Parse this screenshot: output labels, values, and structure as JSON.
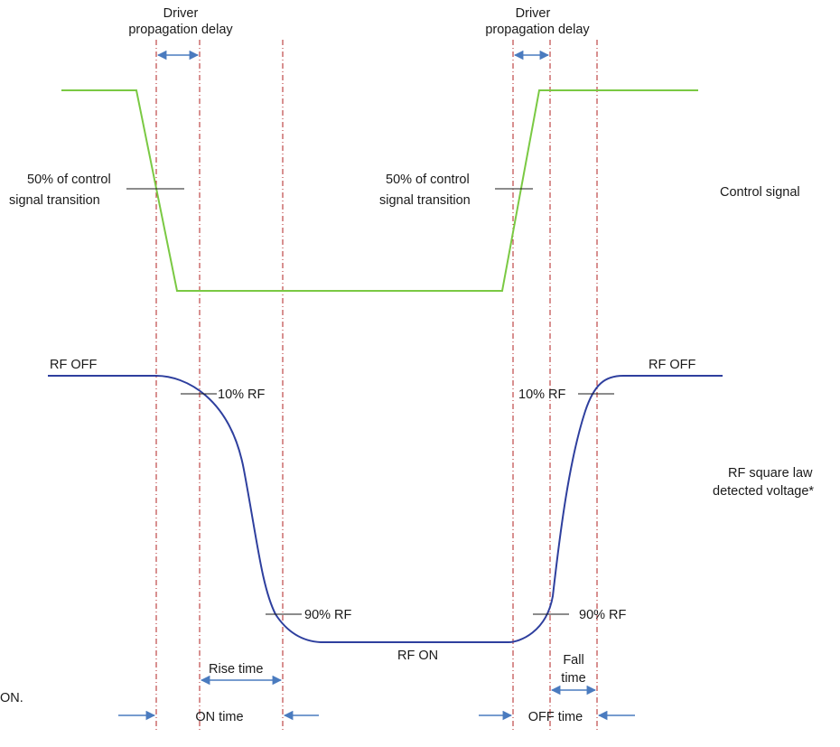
{
  "labels": {
    "driver_delay_left_line1": "Driver",
    "driver_delay_left_line2": "propagation delay",
    "driver_delay_right_line1": "Driver",
    "driver_delay_right_line2": "propagation delay",
    "ctrl50_left_line1": "50% of control",
    "ctrl50_left_line2": "signal transition",
    "ctrl50_right_line1": "50% of control",
    "ctrl50_right_line2": "signal transition",
    "control_signal": "Control signal",
    "rf_off_left": "RF OFF",
    "rf_off_right": "RF OFF",
    "rf10_left": "10% RF",
    "rf10_right": "10% RF",
    "rf_square_line1": "RF square law",
    "rf_square_line2": "detected voltage*",
    "rf90_left": "90% RF",
    "rf90_right": "90% RF",
    "rf_on": "RF ON",
    "rise_time": "Rise time",
    "fall_time_line1": "Fall",
    "fall_time_line2": "time",
    "on_time": "ON time",
    "off_time": "OFF time",
    "cut_off_text": "ON."
  },
  "colors": {
    "control_signal": "#7ac943",
    "rf_signal": "#2e3f9e",
    "marker_line": "#b22222",
    "arrow": "#4a7bbf",
    "tick": "#1a1a1a"
  }
}
